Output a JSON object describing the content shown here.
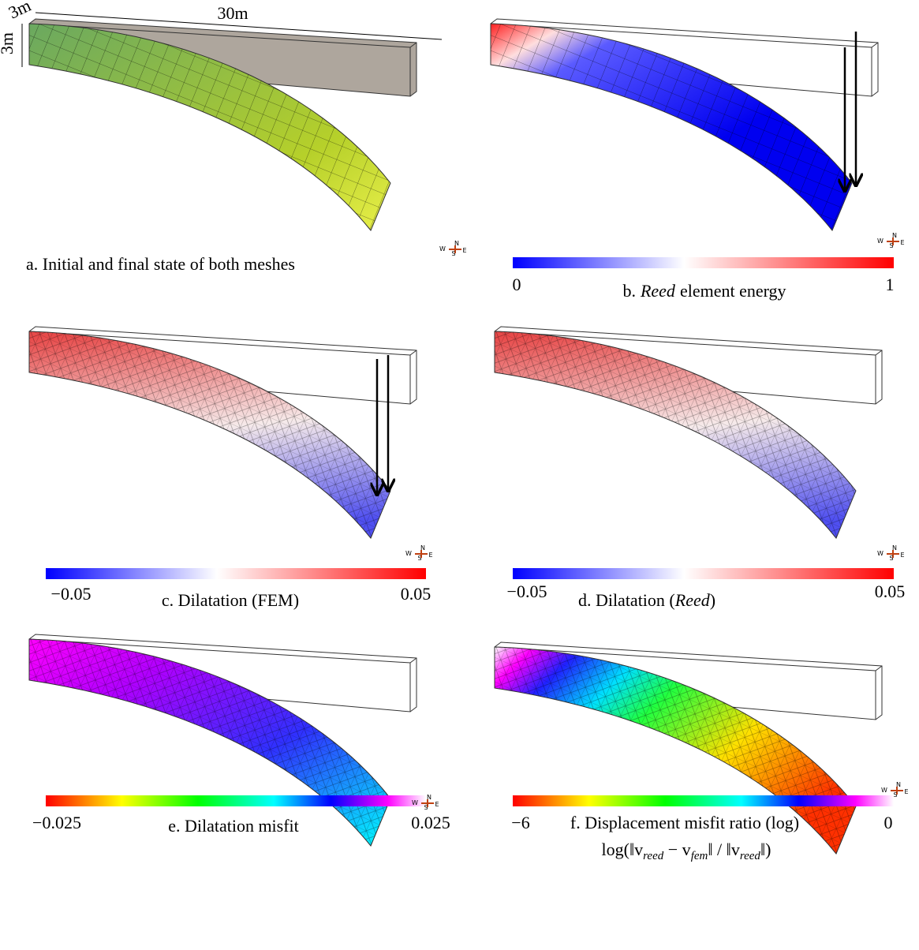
{
  "compass": {
    "w": "W",
    "n": "N",
    "s": "S",
    "e": "E"
  },
  "panels": [
    {
      "dims": {
        "width": "30m",
        "depth": "3m",
        "height": "3m"
      },
      "caption": "a. Initial and final state of both meshes"
    },
    {
      "colorbar": {
        "min": "0",
        "max": "1"
      },
      "caption": {
        "prefix": "b.",
        "emph": "Reed",
        "suffix": "element energy"
      }
    },
    {
      "colorbar": {
        "min": "−0.05",
        "max": "0.05"
      },
      "caption": "c. Dilatation (FEM)"
    },
    {
      "colorbar": {
        "min": "−0.05",
        "max": "0.05"
      },
      "caption": {
        "prefix": "d. Dilatation (",
        "emph": "Reed",
        "suffix": ")"
      }
    },
    {
      "colorbar": {
        "min": "−0.025",
        "max": "0.025"
      },
      "caption": "e. Dilatation misfit"
    },
    {
      "colorbar": {
        "min": "−6",
        "max": "0"
      },
      "caption": "f. Displacement misfit ratio (log)",
      "formula": {
        "parts": [
          "log(‖v",
          "reed",
          " − v",
          "fem",
          "‖ / ‖v",
          "reed",
          "‖)"
        ]
      }
    }
  ]
}
